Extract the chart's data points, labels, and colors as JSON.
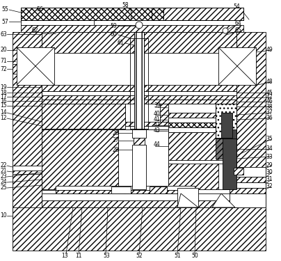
{
  "figsize": [
    4.04,
    3.75
  ],
  "dpi": 100,
  "bg_color": "#ffffff",
  "lw": 0.6,
  "fs": 5.5,
  "gray_dark": "#444444",
  "gray_med": "#777777",
  "gray_light": "#aaaaaa",
  "gray_checker": "#999999"
}
